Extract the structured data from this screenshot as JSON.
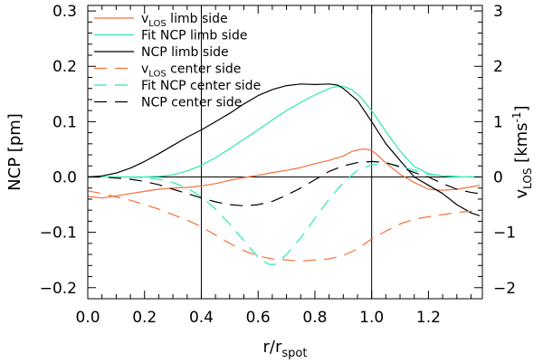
{
  "chart_data": {
    "type": "line",
    "xlabel": {
      "main": "r/r",
      "sub": "spot"
    },
    "ylabel_left": "NCP [pm]",
    "ylabel_right": {
      "v": "v",
      "sub": "LOS",
      "unit_pre": " [kms",
      "sup": "-1",
      "unit_post": "]"
    },
    "xlim": [
      0.0,
      1.39
    ],
    "ylim_left": [
      -0.22,
      0.31
    ],
    "ylim_right": [
      -2.2,
      3.1
    ],
    "x_ticks": [
      {
        "value": 0.0,
        "label": "0.0"
      },
      {
        "value": 0.2,
        "label": "0.2"
      },
      {
        "value": 0.4,
        "label": "0.4"
      },
      {
        "value": 0.6,
        "label": "0.6"
      },
      {
        "value": 0.8,
        "label": "0.8"
      },
      {
        "value": 1.0,
        "label": "1.0"
      },
      {
        "value": 1.2,
        "label": "1.2"
      }
    ],
    "y_ticks_left": [
      {
        "value": -0.2,
        "label": "−0.2"
      },
      {
        "value": -0.1,
        "label": "−0.1"
      },
      {
        "value": 0.0,
        "label": "0.0"
      },
      {
        "value": 0.1,
        "label": "0.1"
      },
      {
        "value": 0.2,
        "label": "0.2"
      },
      {
        "value": 0.3,
        "label": "0.3"
      }
    ],
    "y_ticks_right": [
      {
        "value": -2,
        "label": "−2"
      },
      {
        "value": -1,
        "label": "−1"
      },
      {
        "value": 0,
        "label": "0"
      },
      {
        "value": 1,
        "label": "1"
      },
      {
        "value": 2,
        "label": "2"
      },
      {
        "value": 3,
        "label": "3"
      }
    ],
    "vlines": [
      0.4,
      1.0
    ],
    "hline": 0.0,
    "legend_position": "top-left",
    "colors": {
      "orange": "#f4703a",
      "cyan": "#2ee6b4",
      "black": "#000000"
    },
    "series": [
      {
        "key": "vlos_limb",
        "legend": {
          "main": "v",
          "sub": "LOS",
          "rest": " limb side"
        },
        "color": "orange",
        "dashed": false,
        "axis": "right",
        "x": [
          0.0,
          0.05,
          0.1,
          0.15,
          0.2,
          0.25,
          0.3,
          0.35,
          0.4,
          0.45,
          0.5,
          0.55,
          0.6,
          0.65,
          0.7,
          0.75,
          0.8,
          0.85,
          0.9,
          0.93,
          0.96,
          0.98,
          1.0,
          1.02,
          1.05,
          1.1,
          1.15,
          1.2,
          1.25,
          1.3,
          1.35,
          1.38
        ],
        "y": [
          -0.35,
          -0.38,
          -0.34,
          -0.3,
          -0.26,
          -0.22,
          -0.2,
          -0.19,
          -0.16,
          -0.12,
          -0.06,
          -0.01,
          0.03,
          0.08,
          0.12,
          0.17,
          0.24,
          0.3,
          0.38,
          0.46,
          0.5,
          0.5,
          0.48,
          0.4,
          0.25,
          0.05,
          -0.1,
          -0.22,
          -0.24,
          -0.22,
          -0.18,
          -0.15
        ]
      },
      {
        "key": "fit_ncp_limb",
        "legend": {
          "main": "Fit NCP limb side",
          "sub": "",
          "rest": ""
        },
        "color": "cyan",
        "dashed": false,
        "axis": "left",
        "x": [
          0.0,
          0.1,
          0.2,
          0.25,
          0.3,
          0.35,
          0.4,
          0.45,
          0.5,
          0.55,
          0.6,
          0.65,
          0.7,
          0.75,
          0.8,
          0.85,
          0.88,
          0.9,
          0.93,
          0.96,
          1.0,
          1.05,
          1.1,
          1.15,
          1.2,
          1.25,
          1.3,
          1.38
        ],
        "y": [
          0.0,
          0.0,
          0.0,
          0.001,
          0.004,
          0.011,
          0.021,
          0.035,
          0.051,
          0.068,
          0.085,
          0.103,
          0.12,
          0.135,
          0.148,
          0.16,
          0.164,
          0.164,
          0.158,
          0.145,
          0.12,
          0.082,
          0.047,
          0.019,
          0.006,
          0.002,
          0.0,
          0.0
        ]
      },
      {
        "key": "ncp_limb",
        "legend": {
          "main": "NCP limb side",
          "sub": "",
          "rest": ""
        },
        "color": "black",
        "dashed": false,
        "axis": "left",
        "x": [
          0.0,
          0.05,
          0.1,
          0.15,
          0.2,
          0.25,
          0.3,
          0.35,
          0.4,
          0.45,
          0.5,
          0.55,
          0.6,
          0.65,
          0.7,
          0.75,
          0.8,
          0.85,
          0.88,
          0.9,
          0.95,
          1.0,
          1.05,
          1.1,
          1.15,
          1.2,
          1.25,
          1.3,
          1.35,
          1.38
        ],
        "y": [
          0.0,
          0.002,
          0.007,
          0.016,
          0.028,
          0.042,
          0.057,
          0.072,
          0.085,
          0.1,
          0.115,
          0.132,
          0.147,
          0.158,
          0.165,
          0.168,
          0.167,
          0.168,
          0.166,
          0.16,
          0.138,
          0.1,
          0.06,
          0.03,
          0.0,
          -0.015,
          -0.03,
          -0.05,
          -0.065,
          -0.07
        ]
      },
      {
        "key": "vlos_center",
        "legend": {
          "main": "v",
          "sub": "LOS",
          "rest": " center side"
        },
        "color": "orange",
        "dashed": true,
        "axis": "right",
        "x": [
          0.0,
          0.05,
          0.1,
          0.15,
          0.2,
          0.25,
          0.3,
          0.35,
          0.4,
          0.45,
          0.5,
          0.55,
          0.6,
          0.65,
          0.7,
          0.75,
          0.8,
          0.85,
          0.9,
          0.95,
          1.0,
          1.05,
          1.1,
          1.15,
          1.2,
          1.25,
          1.3,
          1.35,
          1.38
        ],
        "y": [
          -0.25,
          -0.3,
          -0.36,
          -0.42,
          -0.5,
          -0.58,
          -0.68,
          -0.78,
          -0.9,
          -1.05,
          -1.2,
          -1.33,
          -1.43,
          -1.48,
          -1.5,
          -1.52,
          -1.5,
          -1.48,
          -1.42,
          -1.3,
          -1.12,
          -0.98,
          -0.85,
          -0.76,
          -0.72,
          -0.68,
          -0.64,
          -0.62,
          -0.6
        ]
      },
      {
        "key": "fit_ncp_center",
        "legend": {
          "main": "Fit NCP center side",
          "sub": "",
          "rest": ""
        },
        "color": "cyan",
        "dashed": true,
        "axis": "left",
        "x": [
          0.0,
          0.1,
          0.2,
          0.25,
          0.3,
          0.35,
          0.4,
          0.45,
          0.5,
          0.55,
          0.6,
          0.62,
          0.64,
          0.66,
          0.68,
          0.7,
          0.75,
          0.8,
          0.85,
          0.9,
          0.95,
          1.0,
          1.05,
          1.1,
          1.15,
          1.2,
          1.3,
          1.38
        ],
        "y": [
          0.0,
          0.0,
          -0.001,
          -0.004,
          -0.01,
          -0.02,
          -0.036,
          -0.058,
          -0.085,
          -0.115,
          -0.145,
          -0.153,
          -0.158,
          -0.158,
          -0.15,
          -0.14,
          -0.11,
          -0.075,
          -0.04,
          -0.01,
          0.012,
          0.022,
          0.025,
          0.02,
          0.012,
          0.005,
          0.001,
          0.0
        ]
      },
      {
        "key": "ncp_center",
        "legend": {
          "main": "NCP center side",
          "sub": "",
          "rest": ""
        },
        "color": "black",
        "dashed": true,
        "axis": "left",
        "x": [
          0.0,
          0.05,
          0.1,
          0.15,
          0.2,
          0.25,
          0.3,
          0.35,
          0.4,
          0.45,
          0.5,
          0.55,
          0.6,
          0.65,
          0.7,
          0.75,
          0.8,
          0.85,
          0.9,
          0.95,
          1.0,
          1.05,
          1.1,
          1.15,
          1.2,
          1.25,
          1.3,
          1.35,
          1.38
        ],
        "y": [
          0.0,
          0.0,
          -0.002,
          -0.004,
          -0.008,
          -0.014,
          -0.022,
          -0.03,
          -0.038,
          -0.045,
          -0.05,
          -0.052,
          -0.05,
          -0.044,
          -0.033,
          -0.02,
          -0.005,
          0.01,
          0.02,
          0.026,
          0.028,
          0.026,
          0.018,
          0.008,
          0.0,
          -0.012,
          -0.022,
          -0.028,
          -0.03
        ]
      }
    ]
  }
}
